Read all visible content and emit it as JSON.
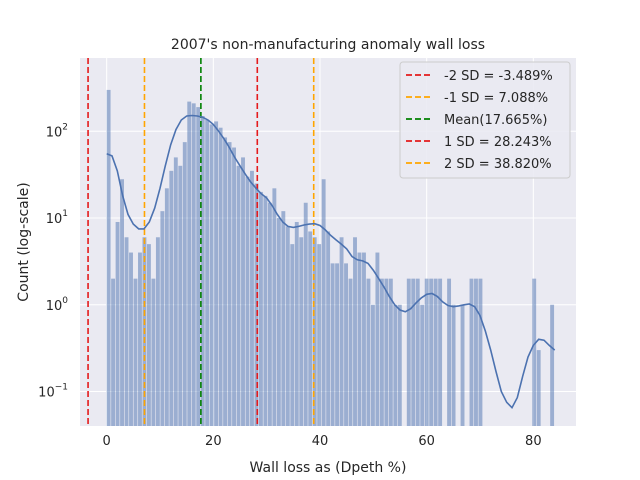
{
  "chart_data": {
    "type": "bar",
    "title": "2007's non-manufacturing anomaly wall loss",
    "xlabel": "Wall loss as (Dpeth %)",
    "ylabel": "Count (log-scale)",
    "yscale": "log",
    "xlim": [
      -5,
      88
    ],
    "ylim": [
      0.04,
      700
    ],
    "x_ticks": [
      0,
      20,
      40,
      60,
      80
    ],
    "y_ticks": [
      {
        "value": 0.1,
        "base": "10",
        "exp": "−1"
      },
      {
        "value": 1,
        "base": "10",
        "exp": "0"
      },
      {
        "value": 10,
        "base": "10",
        "exp": "1"
      },
      {
        "value": 100,
        "base": "10",
        "exp": "2"
      }
    ],
    "grid": true,
    "legend_position": "top-right",
    "histogram": {
      "bin_width": 0.84,
      "color": "#4c72b0",
      "bins": [
        {
          "x": 0.42,
          "count": 300
        },
        {
          "x": 1.26,
          "count": 2
        },
        {
          "x": 2.1,
          "count": 9
        },
        {
          "x": 2.94,
          "count": 28
        },
        {
          "x": 3.78,
          "count": 6
        },
        {
          "x": 4.62,
          "count": 4
        },
        {
          "x": 5.46,
          "count": 2
        },
        {
          "x": 6.3,
          "count": 4
        },
        {
          "x": 7.14,
          "count": 6
        },
        {
          "x": 7.98,
          "count": 5
        },
        {
          "x": 8.82,
          "count": 2
        },
        {
          "x": 9.66,
          "count": 6
        },
        {
          "x": 10.5,
          "count": 12
        },
        {
          "x": 11.34,
          "count": 22
        },
        {
          "x": 12.18,
          "count": 35
        },
        {
          "x": 13.02,
          "count": 50
        },
        {
          "x": 13.86,
          "count": 40
        },
        {
          "x": 14.7,
          "count": 75
        },
        {
          "x": 15.54,
          "count": 220
        },
        {
          "x": 16.38,
          "count": 210
        },
        {
          "x": 17.22,
          "count": 190
        },
        {
          "x": 18.06,
          "count": 150
        },
        {
          "x": 18.9,
          "count": 135
        },
        {
          "x": 19.74,
          "count": 120
        },
        {
          "x": 20.58,
          "count": 130
        },
        {
          "x": 21.42,
          "count": 110
        },
        {
          "x": 22.26,
          "count": 85
        },
        {
          "x": 23.1,
          "count": 75
        },
        {
          "x": 23.94,
          "count": 65
        },
        {
          "x": 24.78,
          "count": 40
        },
        {
          "x": 25.62,
          "count": 50
        },
        {
          "x": 26.46,
          "count": 30
        },
        {
          "x": 27.3,
          "count": 35
        },
        {
          "x": 28.14,
          "count": 25
        },
        {
          "x": 28.98,
          "count": 20
        },
        {
          "x": 29.82,
          "count": 18
        },
        {
          "x": 30.66,
          "count": 15
        },
        {
          "x": 31.5,
          "count": 22
        },
        {
          "x": 32.34,
          "count": 10
        },
        {
          "x": 33.18,
          "count": 12
        },
        {
          "x": 34.02,
          "count": 8
        },
        {
          "x": 34.86,
          "count": 5
        },
        {
          "x": 35.7,
          "count": 9
        },
        {
          "x": 36.54,
          "count": 6
        },
        {
          "x": 37.38,
          "count": 15
        },
        {
          "x": 38.22,
          "count": 7
        },
        {
          "x": 39.06,
          "count": 6
        },
        {
          "x": 39.9,
          "count": 5
        },
        {
          "x": 40.74,
          "count": 28
        },
        {
          "x": 41.58,
          "count": 7
        },
        {
          "x": 42.42,
          "count": 3
        },
        {
          "x": 43.26,
          "count": 3
        },
        {
          "x": 44.1,
          "count": 6
        },
        {
          "x": 44.94,
          "count": 3
        },
        {
          "x": 45.78,
          "count": 2
        },
        {
          "x": 46.62,
          "count": 6
        },
        {
          "x": 47.46,
          "count": 4
        },
        {
          "x": 48.3,
          "count": 4
        },
        {
          "x": 49.14,
          "count": 2
        },
        {
          "x": 49.98,
          "count": 1
        },
        {
          "x": 50.82,
          "count": 4
        },
        {
          "x": 51.66,
          "count": 2
        },
        {
          "x": 52.5,
          "count": 2
        },
        {
          "x": 53.34,
          "count": 2
        },
        {
          "x": 54.18,
          "count": 1
        },
        {
          "x": 55.02,
          "count": 1
        },
        {
          "x": 56.7,
          "count": 2
        },
        {
          "x": 57.54,
          "count": 2
        },
        {
          "x": 58.38,
          "count": 2
        },
        {
          "x": 59.22,
          "count": 1
        },
        {
          "x": 60.06,
          "count": 2
        },
        {
          "x": 60.9,
          "count": 2
        },
        {
          "x": 61.74,
          "count": 2
        },
        {
          "x": 62.58,
          "count": 2
        },
        {
          "x": 64.26,
          "count": 2
        },
        {
          "x": 65.1,
          "count": 1
        },
        {
          "x": 66.78,
          "count": 1
        },
        {
          "x": 68.46,
          "count": 2
        },
        {
          "x": 69.3,
          "count": 2
        },
        {
          "x": 70.14,
          "count": 2
        },
        {
          "x": 80.22,
          "count": 2
        },
        {
          "x": 81.06,
          "count": 0.3
        },
        {
          "x": 83.58,
          "count": 1
        }
      ]
    },
    "kde": {
      "color": "#4c72b0",
      "points": [
        [
          0,
          55
        ],
        [
          1,
          52
        ],
        [
          2,
          35
        ],
        [
          3,
          18
        ],
        [
          4,
          11
        ],
        [
          5,
          8.5
        ],
        [
          6,
          7.5
        ],
        [
          7,
          7.5
        ],
        [
          8,
          9
        ],
        [
          9,
          13
        ],
        [
          10,
          22
        ],
        [
          11,
          40
        ],
        [
          12,
          70
        ],
        [
          13,
          105
        ],
        [
          14,
          135
        ],
        [
          15,
          150
        ],
        [
          16,
          152
        ],
        [
          17,
          150
        ],
        [
          18,
          145
        ],
        [
          19,
          135
        ],
        [
          20,
          120
        ],
        [
          21,
          100
        ],
        [
          22,
          82
        ],
        [
          23,
          65
        ],
        [
          24,
          50
        ],
        [
          25,
          40
        ],
        [
          26,
          32
        ],
        [
          27,
          26
        ],
        [
          28,
          22
        ],
        [
          29,
          19
        ],
        [
          30,
          17
        ],
        [
          31,
          14
        ],
        [
          32,
          11
        ],
        [
          33,
          9
        ],
        [
          34,
          8
        ],
        [
          35,
          7.8
        ],
        [
          36,
          8
        ],
        [
          37,
          8.3
        ],
        [
          38,
          8.5
        ],
        [
          39,
          8.6
        ],
        [
          40,
          8.2
        ],
        [
          41,
          7.3
        ],
        [
          42,
          6.3
        ],
        [
          43,
          5.6
        ],
        [
          44,
          5
        ],
        [
          45,
          4.4
        ],
        [
          46,
          3.6
        ],
        [
          47,
          3.3
        ],
        [
          48,
          3.2
        ],
        [
          49,
          3
        ],
        [
          50,
          2.5
        ],
        [
          51,
          2
        ],
        [
          52,
          1.6
        ],
        [
          53,
          1.25
        ],
        [
          54,
          1
        ],
        [
          55,
          0.87
        ],
        [
          56,
          0.83
        ],
        [
          57,
          0.9
        ],
        [
          58,
          1.05
        ],
        [
          59,
          1.2
        ],
        [
          60,
          1.32
        ],
        [
          61,
          1.35
        ],
        [
          62,
          1.25
        ],
        [
          63,
          1.08
        ],
        [
          64,
          0.98
        ],
        [
          65,
          0.95
        ],
        [
          66,
          0.97
        ],
        [
          67,
          1
        ],
        [
          68,
          1.02
        ],
        [
          69,
          0.95
        ],
        [
          70,
          0.75
        ],
        [
          71,
          0.5
        ],
        [
          72,
          0.3
        ],
        [
          73,
          0.17
        ],
        [
          74,
          0.1
        ],
        [
          75,
          0.075
        ],
        [
          76,
          0.065
        ],
        [
          77,
          0.085
        ],
        [
          78,
          0.15
        ],
        [
          79,
          0.25
        ],
        [
          80,
          0.34
        ],
        [
          81,
          0.4
        ],
        [
          82,
          0.39
        ],
        [
          83,
          0.34
        ],
        [
          84,
          0.3
        ]
      ]
    },
    "vlines": [
      {
        "x": -3.489,
        "color": "#e41a1c",
        "label": "-2 SD = -3.489%"
      },
      {
        "x": 7.088,
        "color": "#ffa500",
        "label": "-1 SD = 7.088%"
      },
      {
        "x": 17.665,
        "color": "#008000",
        "label": "Mean(17.665%)"
      },
      {
        "x": 28.243,
        "color": "#e41a1c",
        "label": "1 SD = 28.243%"
      },
      {
        "x": 38.82,
        "color": "#ffa500",
        "label": "2 SD = 38.820%"
      }
    ]
  }
}
